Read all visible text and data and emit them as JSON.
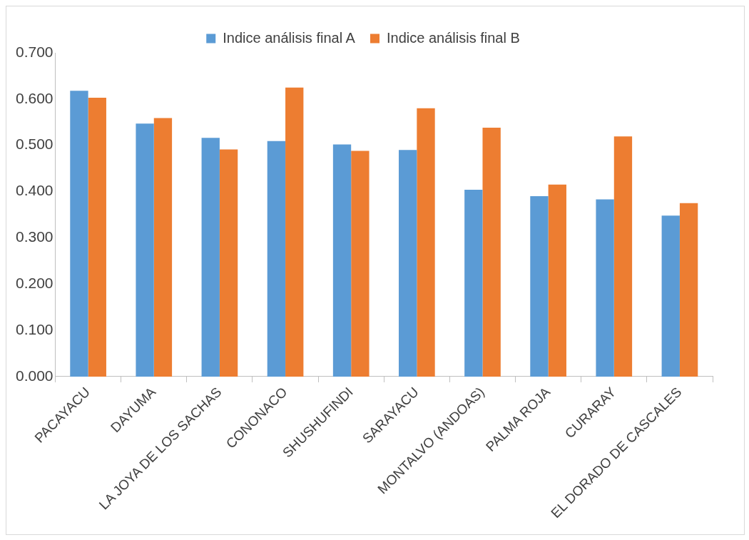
{
  "chart_data": {
    "type": "bar",
    "categories": [
      "PACAYACU",
      "DAYUMA",
      "LA JOYA DE LOS SACHAS",
      "CONONACO",
      "SHUSHUFINDI",
      "SARAYACU",
      "MONTALVO (ANDOAS)",
      "PALMA ROJA",
      "CURARAY",
      "EL DORADO DE CASCALES"
    ],
    "series": [
      {
        "name": "Indice análisis final A",
        "color": "#5b9bd5",
        "values": [
          0.618,
          0.547,
          0.516,
          0.509,
          0.502,
          0.49,
          0.404,
          0.39,
          0.383,
          0.348
        ]
      },
      {
        "name": "Indice análisis final B",
        "color": "#ed7d31",
        "values": [
          0.603,
          0.559,
          0.491,
          0.625,
          0.488,
          0.58,
          0.538,
          0.415,
          0.519,
          0.375
        ]
      }
    ],
    "ylim": [
      0,
      0.7
    ],
    "yticks": [
      {
        "value": 0,
        "label": "0.000"
      },
      {
        "value": 0.1,
        "label": "0.100"
      },
      {
        "value": 0.2,
        "label": "0.200"
      },
      {
        "value": 0.3,
        "label": "0.300"
      },
      {
        "value": 0.4,
        "label": "0.400"
      },
      {
        "value": 0.5,
        "label": "0.500"
      },
      {
        "value": 0.6,
        "label": "0.600"
      },
      {
        "value": 0.7,
        "label": "0.700"
      }
    ],
    "grid": false,
    "legend": "top"
  }
}
